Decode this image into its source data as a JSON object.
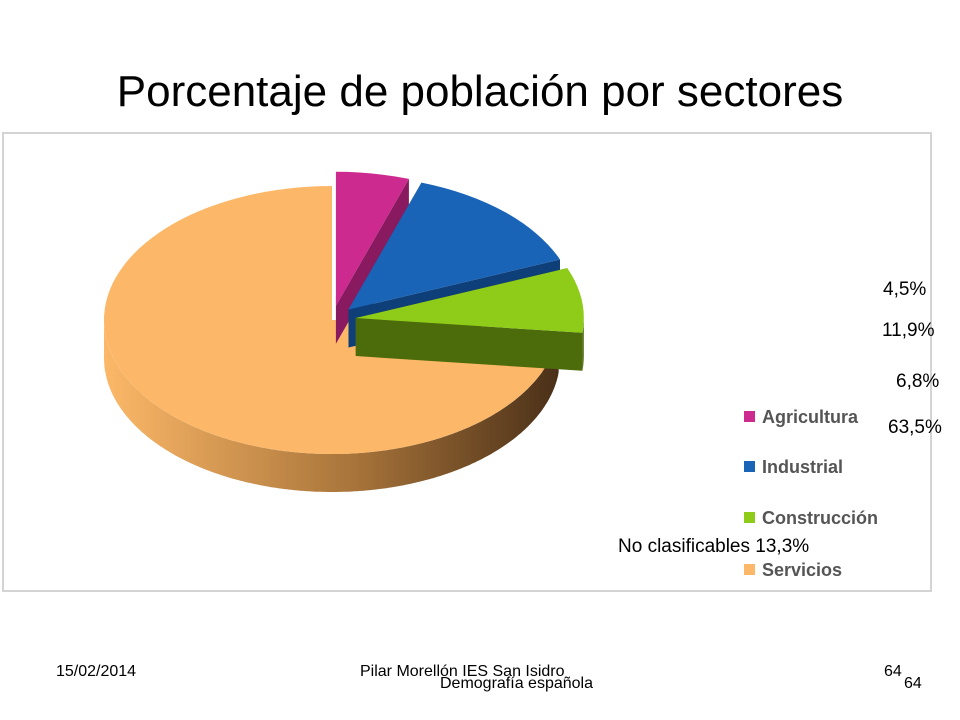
{
  "slide": {
    "title": "Porcentaje de población por sectores",
    "note": "No clasificables  13,3%"
  },
  "chart_data": {
    "type": "pie",
    "title": "",
    "categories": [
      "Agricultura",
      "Industrial",
      "Construcción",
      "Servicios"
    ],
    "values": [
      4.5,
      11.9,
      6.8,
      63.5
    ],
    "value_labels": [
      "4,5%",
      "11,9%",
      "6,8%",
      "63,5%"
    ],
    "colors": [
      "#cc2a8f",
      "#1a64b8",
      "#8fcc1a",
      "#fcb868"
    ],
    "side_colors": [
      "#8a1a60",
      "#0f3f78",
      "#4c6b0a",
      "#a8743a"
    ],
    "legend_position": "right",
    "style": "3d-exploded"
  },
  "footer": {
    "date": "15/02/2014",
    "author": "Pilar Morellón IES San Isidro",
    "subject": "Demografía española",
    "page_a": "64",
    "page_b": "64"
  }
}
